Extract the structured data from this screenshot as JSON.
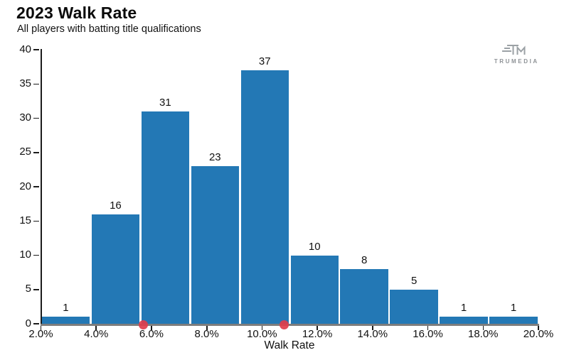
{
  "header": {
    "title": "2023 Walk Rate",
    "subtitle": "All players with batting title qualifications"
  },
  "logo": {
    "text": "TRUMEDIA",
    "icon": "trumedia-tm-monogram",
    "color": "#9ba1a5"
  },
  "chart_data": {
    "type": "bar",
    "title": "2023 Walk Rate",
    "subtitle": "All players with batting title qualifications",
    "xlabel": "Walk Rate",
    "ylabel": "",
    "xlim_pct": [
      2.0,
      20.0
    ],
    "ylim": [
      0,
      40
    ],
    "grid": false,
    "legend": false,
    "bar_color": "#2378b5",
    "bin_width_pct": 1.8,
    "bins": [
      {
        "range": "2.0-3.8%",
        "start": 2.0,
        "end": 3.8,
        "count": 1
      },
      {
        "range": "3.8-5.6%",
        "start": 3.8,
        "end": 5.6,
        "count": 16
      },
      {
        "range": "5.6-7.4%",
        "start": 5.6,
        "end": 7.4,
        "count": 31
      },
      {
        "range": "7.4-9.2%",
        "start": 7.4,
        "end": 9.2,
        "count": 23
      },
      {
        "range": "9.2-11.0%",
        "start": 9.2,
        "end": 11.0,
        "count": 37
      },
      {
        "range": "11.0-12.8%",
        "start": 11.0,
        "end": 12.8,
        "count": 10
      },
      {
        "range": "12.8-14.6%",
        "start": 12.8,
        "end": 14.6,
        "count": 8
      },
      {
        "range": "14.6-16.4%",
        "start": 14.6,
        "end": 16.4,
        "count": 5
      },
      {
        "range": "16.4-18.2%",
        "start": 16.4,
        "end": 18.2,
        "count": 1
      },
      {
        "range": "18.2-20.0%",
        "start": 18.2,
        "end": 20.0,
        "count": 1
      }
    ],
    "yticks": [
      0,
      5,
      10,
      15,
      20,
      25,
      30,
      35,
      40
    ],
    "xticks_pct": [
      2,
      4,
      6,
      8,
      10,
      12,
      14,
      16,
      18,
      20
    ],
    "xtick_labels": [
      "2.0%",
      "4.0%",
      "6.0%",
      "8.0%",
      "10.0%",
      "12.0%",
      "14.0%",
      "16.0%",
      "18.0%",
      "20.0%"
    ],
    "axis_marker_dots_pct": [
      5.7,
      10.8
    ],
    "axis_marker_color": "#df3e4c",
    "axis_color_y": "#1c1c1c",
    "axis_color_x": "#7d7d7d"
  }
}
